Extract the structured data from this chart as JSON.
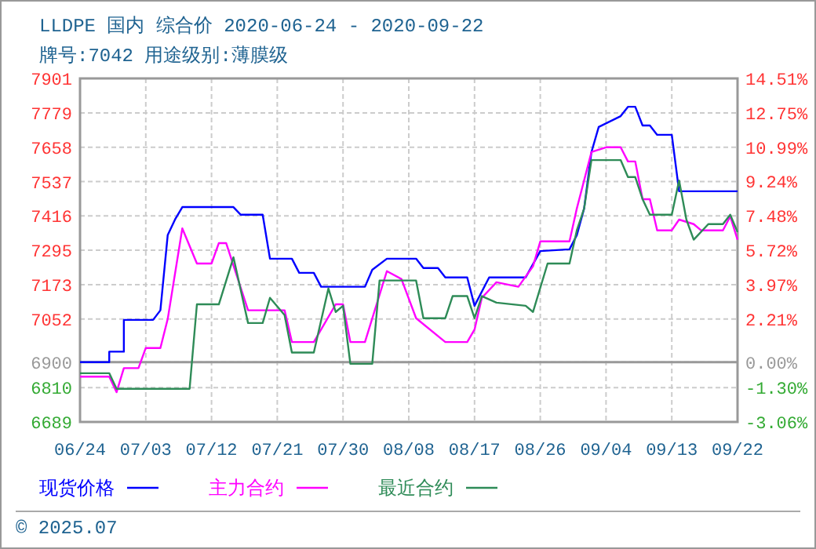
{
  "chart_data": {
    "type": "line",
    "title": "LLDPE 国内 综合价 2020-06-24 - 2020-09-22",
    "subtitle": "牌号:7042 用途级别:薄膜级",
    "xlim": [
      "2020-06-24",
      "2020-09-22"
    ],
    "xticks": [
      {
        "value": "2020-06-24",
        "label": "06/24"
      },
      {
        "value": "2020-07-03",
        "label": "07/03"
      },
      {
        "value": "2020-07-12",
        "label": "07/12"
      },
      {
        "value": "2020-07-21",
        "label": "07/21"
      },
      {
        "value": "2020-07-30",
        "label": "07/30"
      },
      {
        "value": "2020-08-08",
        "label": "08/08"
      },
      {
        "value": "2020-08-17",
        "label": "08/17"
      },
      {
        "value": "2020-08-26",
        "label": "08/26"
      },
      {
        "value": "2020-09-04",
        "label": "09/04"
      },
      {
        "value": "2020-09-13",
        "label": "09/13"
      },
      {
        "value": "2020-09-22",
        "label": "09/22"
      }
    ],
    "ylim": [
      6689,
      7901
    ],
    "yticks": [
      6689,
      6810,
      6900,
      7052,
      7173,
      7295,
      7416,
      7537,
      7658,
      7779,
      7901
    ],
    "y2lim": [
      -3.06,
      14.51
    ],
    "y2ticks": [
      {
        "value": -3.06,
        "label": "-3.06%"
      },
      {
        "value": -1.3,
        "label": "-1.30%"
      },
      {
        "value": 0,
        "label": "0.00%"
      },
      {
        "value": 2.21,
        "label": "2.21%"
      },
      {
        "value": 3.97,
        "label": "3.97%"
      },
      {
        "value": 5.72,
        "label": "5.72%"
      },
      {
        "value": 7.48,
        "label": "7.48%"
      },
      {
        "value": 9.24,
        "label": "9.24%"
      },
      {
        "value": 10.99,
        "label": "10.99%"
      },
      {
        "value": 12.75,
        "label": "12.75%"
      },
      {
        "value": 14.51,
        "label": "14.51%"
      }
    ],
    "ref_lines": [
      {
        "axis": "y",
        "value": 6900,
        "color": "#999999"
      }
    ],
    "grid": true,
    "legend": "bottom",
    "marker": "none",
    "line_style": "solid",
    "annotations": [
      "© 2025.07"
    ],
    "series": [
      {
        "name": "现货价格",
        "color": "#0000ff",
        "x": [
          "2020-06-24",
          "2020-06-28",
          "2020-06-28",
          "2020-06-30",
          "2020-06-30",
          "2020-07-04",
          "2020-07-05",
          "2020-07-06",
          "2020-07-07",
          "2020-07-08",
          "2020-07-15",
          "2020-07-16",
          "2020-07-19",
          "2020-07-20",
          "2020-07-23",
          "2020-07-24",
          "2020-07-26",
          "2020-07-27",
          "2020-08-02",
          "2020-08-03",
          "2020-08-05",
          "2020-08-09",
          "2020-08-10",
          "2020-08-12",
          "2020-08-13",
          "2020-08-16",
          "2020-08-17",
          "2020-08-19",
          "2020-08-24",
          "2020-08-26",
          "2020-08-30",
          "2020-08-31",
          "2020-09-01",
          "2020-09-02",
          "2020-09-03",
          "2020-09-06",
          "2020-09-07",
          "2020-09-08",
          "2020-09-09",
          "2020-09-10",
          "2020-09-11",
          "2020-09-13",
          "2020-09-14",
          "2020-09-22"
        ],
        "values": [
          6900,
          6900,
          6937,
          6937,
          7049,
          7049,
          7083,
          7348,
          7403,
          7447,
          7447,
          7420,
          7420,
          7265,
          7265,
          7215,
          7215,
          7166,
          7166,
          7226,
          7265,
          7265,
          7232,
          7232,
          7199,
          7199,
          7099,
          7199,
          7199,
          7292,
          7298,
          7348,
          7442,
          7641,
          7730,
          7768,
          7801,
          7801,
          7735,
          7735,
          7702,
          7702,
          7503,
          7503
        ]
      },
      {
        "name": "主力合约",
        "color": "#ff00ff",
        "x": [
          "2020-06-24",
          "2020-06-28",
          "2020-06-29",
          "2020-06-30",
          "2020-07-02",
          "2020-07-03",
          "2020-07-05",
          "2020-07-06",
          "2020-07-08",
          "2020-07-10",
          "2020-07-12",
          "2020-07-13",
          "2020-07-14",
          "2020-07-17",
          "2020-07-22",
          "2020-07-23",
          "2020-07-26",
          "2020-07-29",
          "2020-07-30",
          "2020-07-31",
          "2020-08-02",
          "2020-08-05",
          "2020-08-07",
          "2020-08-09",
          "2020-08-13",
          "2020-08-16",
          "2020-08-17",
          "2020-08-18",
          "2020-08-20",
          "2020-08-23",
          "2020-08-25",
          "2020-08-26",
          "2020-08-30",
          "2020-08-31",
          "2020-09-02",
          "2020-09-04",
          "2020-09-06",
          "2020-09-07",
          "2020-09-08",
          "2020-09-09",
          "2020-09-10",
          "2020-09-11",
          "2020-09-13",
          "2020-09-14",
          "2020-09-16",
          "2020-09-17",
          "2020-09-20",
          "2020-09-21",
          "2020-09-22"
        ],
        "values": [
          6849,
          6849,
          6794,
          6879,
          6879,
          6950,
          6950,
          7052,
          7372,
          7248,
          7248,
          7320,
          7320,
          7083,
          7083,
          6971,
          6971,
          7104,
          7104,
          6971,
          6971,
          7221,
          7193,
          7055,
          6971,
          6971,
          7015,
          7127,
          7182,
          7166,
          7238,
          7326,
          7326,
          7442,
          7641,
          7658,
          7658,
          7608,
          7608,
          7475,
          7475,
          7365,
          7365,
          7403,
          7387,
          7365,
          7365,
          7414,
          7332
        ]
      },
      {
        "name": "最近合约",
        "color": "#2e8b57",
        "x": [
          "2020-06-24",
          "2020-06-28",
          "2020-06-29",
          "2020-07-09",
          "2020-07-10",
          "2020-07-13",
          "2020-07-15",
          "2020-07-17",
          "2020-07-19",
          "2020-07-20",
          "2020-07-22",
          "2020-07-23",
          "2020-07-26",
          "2020-07-28",
          "2020-07-29",
          "2020-07-30",
          "2020-07-31",
          "2020-08-03",
          "2020-08-04",
          "2020-08-09",
          "2020-08-10",
          "2020-08-13",
          "2020-08-14",
          "2020-08-16",
          "2020-08-17",
          "2020-08-18",
          "2020-08-20",
          "2020-08-24",
          "2020-08-25",
          "2020-08-27",
          "2020-08-30",
          "2020-08-31",
          "2020-09-01",
          "2020-09-02",
          "2020-09-06",
          "2020-09-07",
          "2020-09-08",
          "2020-09-09",
          "2020-09-10",
          "2020-09-13",
          "2020-09-14",
          "2020-09-15",
          "2020-09-16",
          "2020-09-18",
          "2020-09-20",
          "2020-09-21",
          "2020-09-22"
        ],
        "values": [
          6861,
          6861,
          6806,
          6806,
          7104,
          7104,
          7270,
          7038,
          7038,
          7127,
          7066,
          6934,
          6934,
          7160,
          7077,
          7099,
          6894,
          6894,
          7188,
          7188,
          7055,
          7055,
          7133,
          7133,
          7055,
          7133,
          7110,
          7099,
          7077,
          7248,
          7248,
          7365,
          7442,
          7613,
          7613,
          7553,
          7553,
          7475,
          7420,
          7420,
          7541,
          7403,
          7332,
          7387,
          7387,
          7420,
          7359
        ]
      }
    ]
  }
}
